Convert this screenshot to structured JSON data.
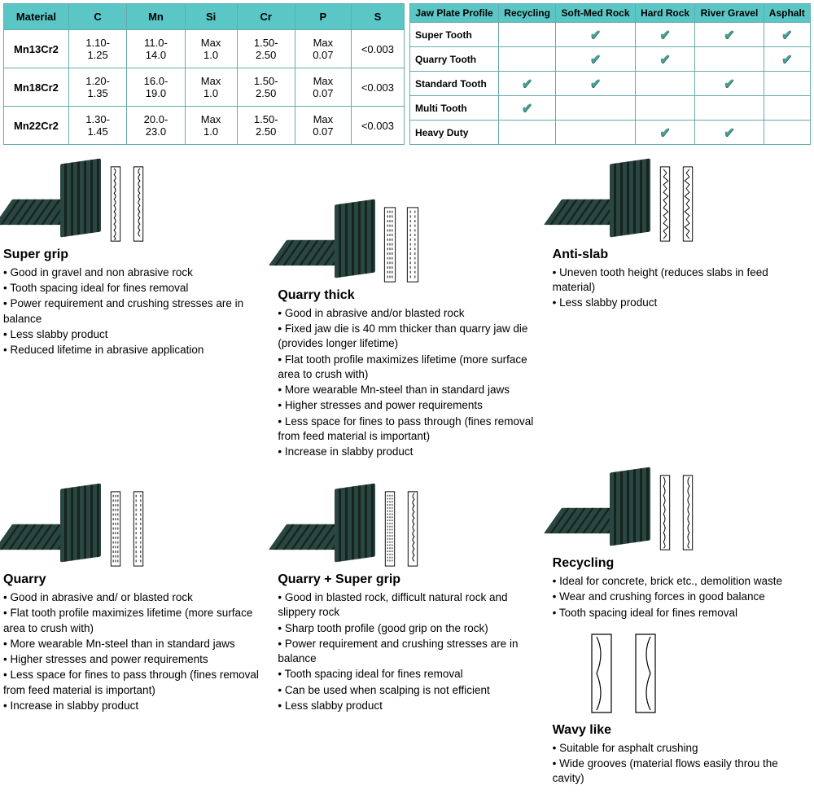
{
  "material_table": {
    "headers": [
      "Material",
      "C",
      "Mn",
      "Si",
      "Cr",
      "P",
      "S"
    ],
    "rows": [
      [
        "Mn13Cr2",
        "1.10-1.25",
        "11.0-14.0",
        "Max 1.0",
        "1.50-2.50",
        "Max 0.07",
        "<0.003"
      ],
      [
        "Mn18Cr2",
        "1.20-1.35",
        "16.0-19.0",
        "Max 1.0",
        "1.50-2.50",
        "Max 0.07",
        "<0.003"
      ],
      [
        "Mn22Cr2",
        "1.30-1.45",
        "20.0-23.0",
        "Max 1.0",
        "1.50-2.50",
        "Max 0.07",
        "<0.003"
      ]
    ],
    "header_bg": "#5bc6c6",
    "border_color": "#6aa"
  },
  "profile_table": {
    "headers": [
      "Jaw Plate Profile",
      "Recycling",
      "Soft-Med Rock",
      "Hard Rock",
      "River Gravel",
      "Asphalt"
    ],
    "rows": [
      {
        "label": "Super Tooth",
        "checks": [
          false,
          true,
          true,
          true,
          true
        ]
      },
      {
        "label": "Quarry Tooth",
        "checks": [
          false,
          true,
          true,
          false,
          true
        ]
      },
      {
        "label": "Standard Tooth",
        "checks": [
          true,
          true,
          false,
          true,
          false
        ]
      },
      {
        "label": "Multi Tooth",
        "checks": [
          true,
          false,
          false,
          false,
          false
        ]
      },
      {
        "label": "Heavy Duty",
        "checks": [
          false,
          false,
          true,
          true,
          false
        ]
      }
    ]
  },
  "blocks": {
    "super_grip": {
      "title": "Super grip",
      "items": [
        "Good in gravel and non abrasive rock",
        "Tooth spacing ideal for fines removal",
        "Power requirement and crushing stresses are in balance",
        "Less slabby product",
        "Reduced lifetime in abrasive application"
      ]
    },
    "quarry_thick": {
      "title": "Quarry thick",
      "items": [
        "Good in abrasive and/or blasted rock",
        "Fixed jaw die is 40 mm thicker than quarry jaw die (provides longer lifetime)",
        "Flat tooth profile maximizes lifetime (more surface area to crush with)",
        "More wearable Mn-steel than in standard jaws",
        "Higher stresses and power requirements",
        "Less space for fines to pass through (fines removal from feed material is important)",
        "Increase in slabby product"
      ]
    },
    "anti_slab": {
      "title": "Anti-slab",
      "items": [
        "Uneven tooth height (reduces slabs in feed material)",
        "Less slabby product"
      ]
    },
    "quarry": {
      "title": "Quarry",
      "items": [
        "Good in abrasive and/ or blasted rock",
        "Flat tooth profile maximizes lifetime (more surface area to crush with)",
        "More wearable Mn-steel than in standard jaws",
        "Higher stresses and power requirements",
        "Less space for fines to pass through (fines removal from feed material is important)",
        "Increase in slabby product"
      ]
    },
    "quarry_super_grip": {
      "title": "Quarry + Super grip",
      "items": [
        "Good in blasted rock, difficult natural rock and slippery rock",
        "Sharp tooth profile (good grip on the rock)",
        "Power requirement and crushing stresses are in balance",
        "Tooth spacing ideal for fines removal",
        "Can be used when scalping is not efficient",
        "Less slabby product"
      ]
    },
    "recycling": {
      "title": "Recycling",
      "items": [
        "Ideal for concrete, brick etc., demolition waste",
        "Wear and crushing forces in good balance",
        "Tooth spacing ideal for fines removal"
      ]
    },
    "wavy": {
      "title": "Wavy like",
      "items": [
        "Suitable for asphalt crushing",
        "Wide grooves (material flows easily throu the cavity)"
      ]
    }
  },
  "colors": {
    "plate_dark": "#1a2e2a",
    "plate_light": "#2a4640",
    "header_bg": "#5bc6c6"
  }
}
